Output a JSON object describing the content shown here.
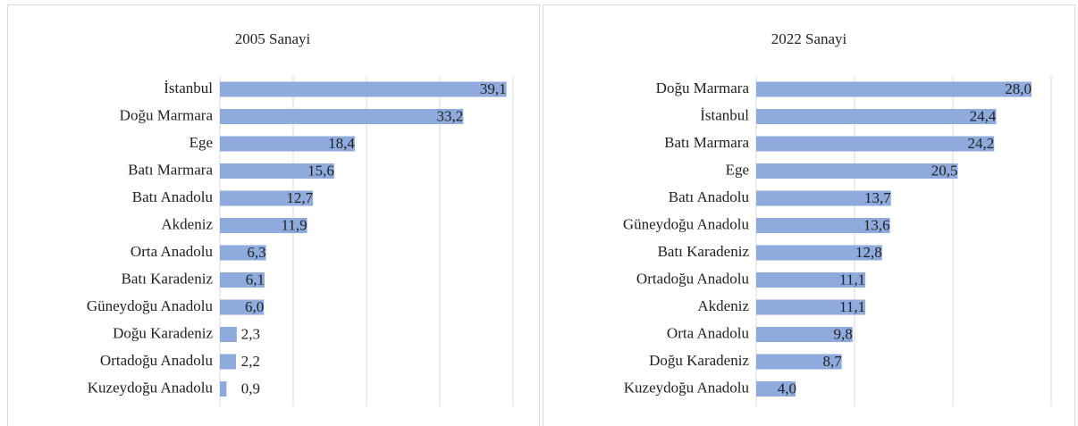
{
  "chart_data": [
    {
      "type": "bar",
      "orientation": "horizontal",
      "title": "2005 Sanayi",
      "categories": [
        "İstanbul",
        "Doğu Marmara",
        "Ege",
        "Batı Marmara",
        "Batı Anadolu",
        "Akdeniz",
        "Orta Anadolu",
        "Batı Karadeniz",
        "Güneydoğu Anadolu",
        "Doğu Karadeniz",
        "Ortadoğu Anadolu",
        "Kuzeydoğu Anadolu"
      ],
      "values": [
        39.1,
        33.2,
        18.4,
        15.6,
        12.7,
        11.9,
        6.3,
        6.1,
        6.0,
        2.3,
        2.2,
        0.9
      ],
      "value_labels": [
        "39,1",
        "33,2",
        "18,4",
        "15,6",
        "12,7",
        "11,9",
        "6,3",
        "6,1",
        "6,0",
        "2,3",
        "2,2",
        "0,9"
      ],
      "color": "#8faadc",
      "xlim": [
        0,
        40
      ],
      "xticks": [
        0,
        10,
        20,
        30,
        40
      ],
      "grid": true
    },
    {
      "type": "bar",
      "orientation": "horizontal",
      "title": "2022 Sanayi",
      "categories": [
        "Doğu Marmara",
        "İstanbul",
        "Batı Marmara",
        "Ege",
        "Batı Anadolu",
        "Güneydoğu Anadolu",
        "Batı Karadeniz",
        "Ortadoğu Anadolu",
        "Akdeniz",
        "Orta Anadolu",
        "Doğu Karadeniz",
        "Kuzeydoğu Anadolu"
      ],
      "values": [
        28.0,
        24.4,
        24.2,
        20.5,
        13.7,
        13.6,
        12.8,
        11.1,
        11.1,
        9.8,
        8.7,
        4.0
      ],
      "value_labels": [
        "28,0",
        "24,4",
        "24,2",
        "20,5",
        "13,7",
        "13,6",
        "12,8",
        "11,1",
        "11,1",
        "9,8",
        "8,7",
        "4,0"
      ],
      "color": "#8faadc",
      "xlim": [
        0,
        30
      ],
      "xticks": [
        0,
        10,
        20,
        30
      ],
      "grid": true
    }
  ]
}
